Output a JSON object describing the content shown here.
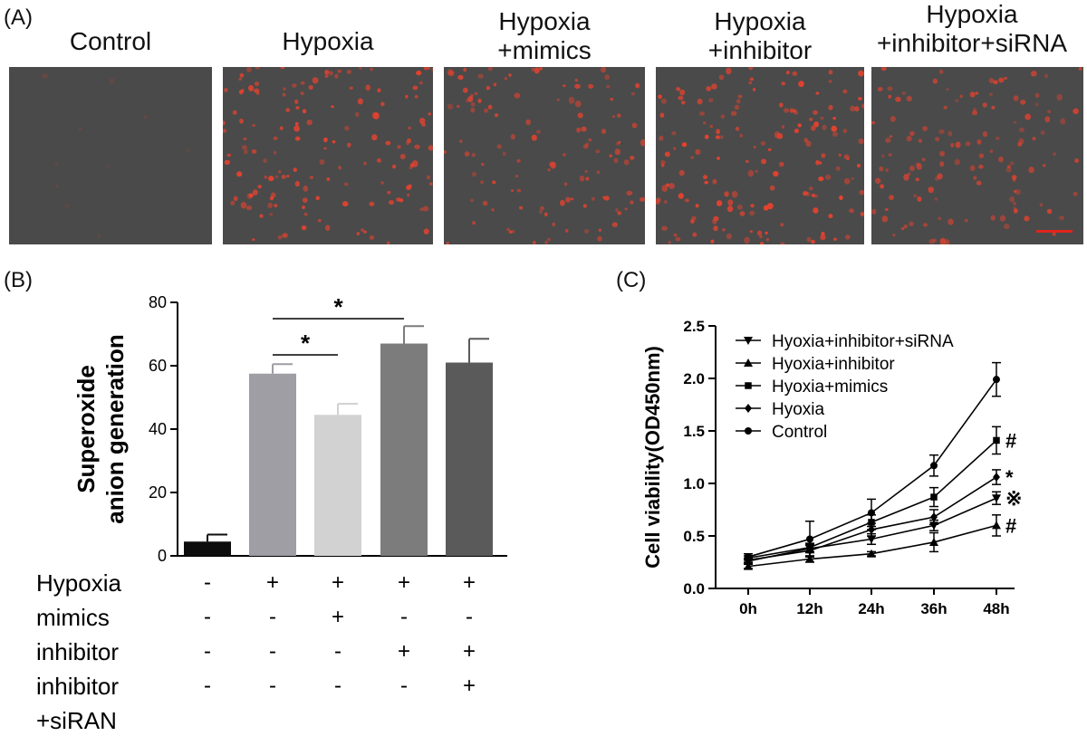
{
  "panel_a": {
    "letter": "(A)",
    "images": [
      {
        "title_lines": [
          "Control"
        ],
        "cells": 10,
        "intensity": 0.18
      },
      {
        "title_lines": [
          "Hypoxia"
        ],
        "cells": 150,
        "intensity": 0.95
      },
      {
        "title_lines": [
          "Hypoxia",
          "+mimics"
        ],
        "cells": 120,
        "intensity": 0.85
      },
      {
        "title_lines": [
          "Hypoxia",
          "+inhibitor"
        ],
        "cells": 165,
        "intensity": 1.0
      },
      {
        "title_lines": [
          "Hypoxia",
          "+inhibitor+siRNA"
        ],
        "cells": 130,
        "intensity": 0.8
      }
    ],
    "colors": {
      "background": "#4a4a4a",
      "cell": "#e8422e",
      "scale_bar": "#e0241c"
    }
  },
  "chart_data": [
    {
      "panel": "(B)",
      "type": "bar",
      "ylabel_lines": [
        "Superoxide",
        "anion generation"
      ],
      "ylim": [
        0,
        80
      ],
      "yticks": [
        0,
        20,
        40,
        60,
        80
      ],
      "values": [
        4.5,
        57.5,
        44.5,
        67,
        61
      ],
      "errors": [
        2.2,
        3.0,
        3.5,
        5.5,
        7.5
      ],
      "colors": [
        "#0d0d0d",
        "#9e9ea4",
        "#d2d2d2",
        "#7c7c7c",
        "#5a5a5a"
      ],
      "significance": [
        {
          "from": 1,
          "to": 2,
          "label": "*"
        },
        {
          "from": 1,
          "to": 3,
          "label": "*"
        }
      ],
      "conditions": [
        {
          "label_lines": [
            "Hypoxia"
          ],
          "signs": [
            "-",
            "+",
            "+",
            "+",
            "+"
          ]
        },
        {
          "label_lines": [
            "mimics"
          ],
          "signs": [
            "-",
            "-",
            "+",
            "-",
            "-"
          ]
        },
        {
          "label_lines": [
            "inhibitor"
          ],
          "signs": [
            "-",
            "-",
            "-",
            "+",
            "+"
          ]
        },
        {
          "label_lines": [
            "inhibitor",
            "+siRAN"
          ],
          "signs": [
            "-",
            "-",
            "-",
            "-",
            "+"
          ]
        }
      ]
    },
    {
      "panel": "(C)",
      "type": "line",
      "ylabel": "Cell viability(OD450nm)",
      "ylim": [
        0,
        2.5
      ],
      "yticks": [
        "0.0",
        "0.5",
        "1.0",
        "1.5",
        "2.0",
        "2.5"
      ],
      "categories": [
        "0h",
        "12h",
        "24h",
        "36h",
        "48h"
      ],
      "series": [
        {
          "name": "Hyoxia+inhibitor+siRNA",
          "marker": "triangle-down",
          "values": [
            0.26,
            0.38,
            0.47,
            0.6,
            0.86
          ],
          "errors": [
            0.02,
            0.04,
            0.05,
            0.05,
            0.06
          ],
          "sig": "※"
        },
        {
          "name": "Hyoxia+inhibitor",
          "marker": "triangle-up",
          "values": [
            0.21,
            0.28,
            0.33,
            0.44,
            0.6
          ],
          "errors": [
            0.02,
            0.03,
            0.02,
            0.09,
            0.1
          ],
          "sig": "#"
        },
        {
          "name": "Hyoxia+mimics",
          "marker": "square",
          "values": [
            0.29,
            0.39,
            0.63,
            0.87,
            1.41
          ],
          "errors": [
            0.02,
            0.04,
            0.07,
            0.09,
            0.13
          ],
          "sig": "#"
        },
        {
          "name": "Hyoxia",
          "marker": "diamond",
          "values": [
            0.27,
            0.36,
            0.56,
            0.68,
            1.06
          ],
          "errors": [
            0.02,
            0.05,
            0.06,
            0.07,
            0.07
          ],
          "sig": "*"
        },
        {
          "name": "Control",
          "marker": "circle",
          "values": [
            0.3,
            0.47,
            0.72,
            1.17,
            1.99
          ],
          "errors": [
            0.03,
            0.17,
            0.13,
            0.1,
            0.16
          ],
          "sig": ""
        }
      ]
    }
  ]
}
